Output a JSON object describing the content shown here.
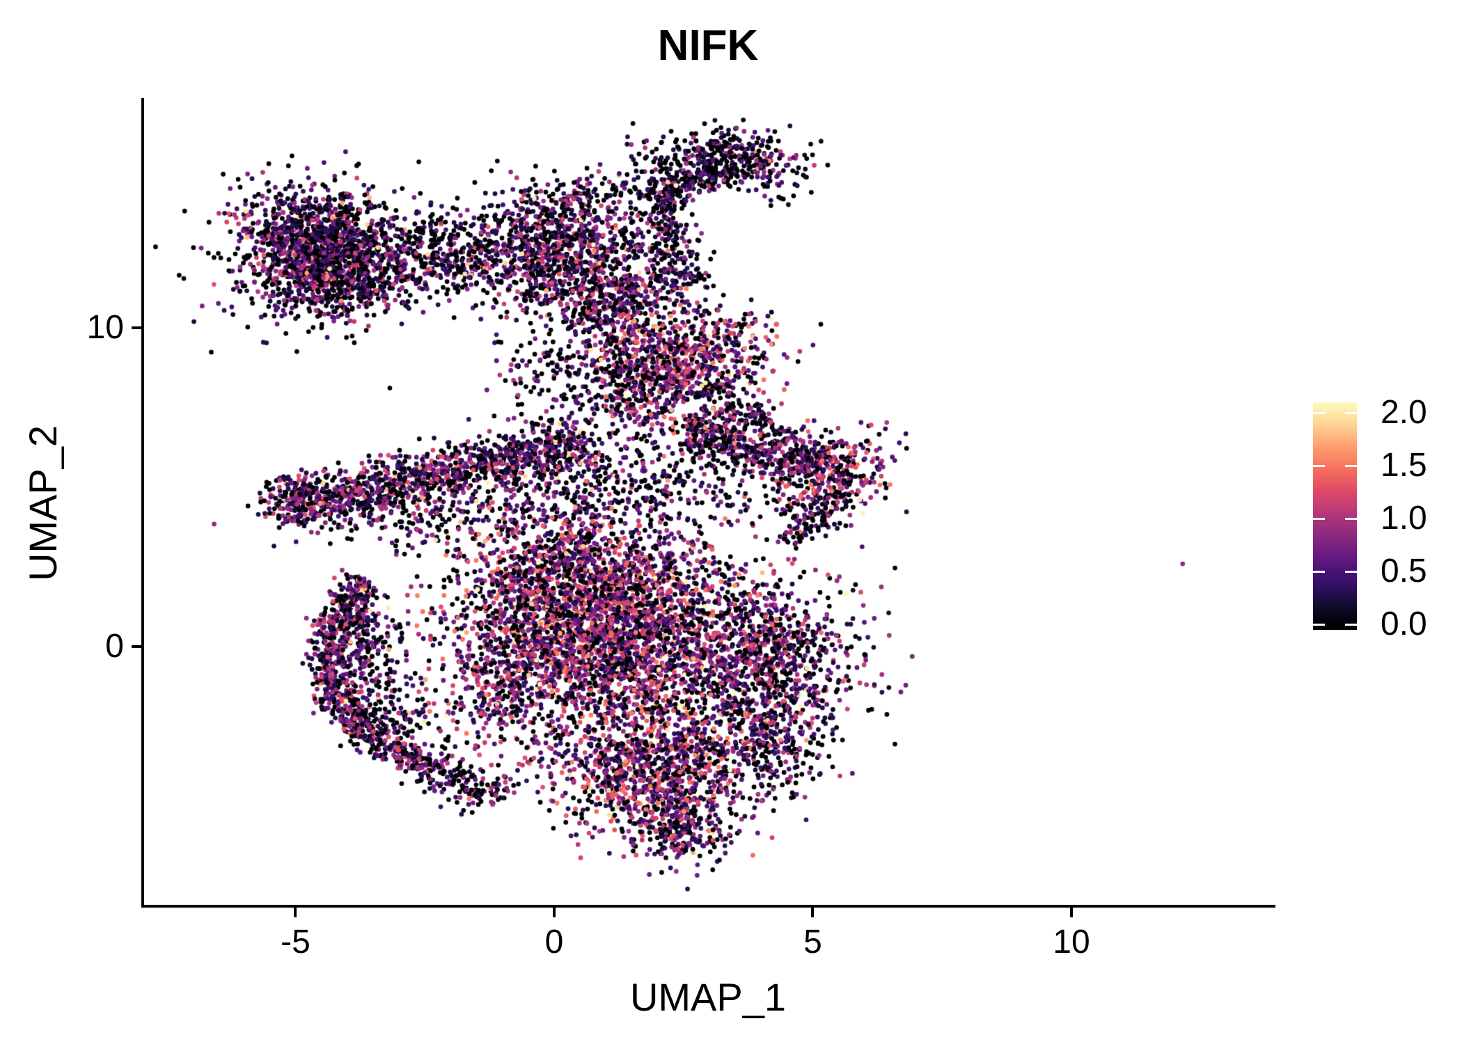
{
  "chart_data": {
    "type": "scatter",
    "title": "NIFK",
    "xlabel": "UMAP_1",
    "ylabel": "UMAP_2",
    "xlim": [
      -7.98,
      13.93
    ],
    "ylim": [
      -8.12,
      17.16
    ],
    "grid": false,
    "background": "#ffffff",
    "point_radius_px": 3.4,
    "seed": 1337,
    "x_ticks": [
      {
        "v": -5,
        "label": "-5"
      },
      {
        "v": 0,
        "label": "0"
      },
      {
        "v": 5,
        "label": "5"
      },
      {
        "v": 10,
        "label": "10"
      }
    ],
    "y_ticks": [
      {
        "v": 0,
        "label": "0"
      },
      {
        "v": 10,
        "label": "10"
      }
    ],
    "legend": {
      "position": "right",
      "range": [
        0,
        2.1
      ],
      "ticks": [
        {
          "v": 2.0,
          "label": "2.0"
        },
        {
          "v": 1.5,
          "label": "1.5"
        },
        {
          "v": 1.0,
          "label": "1.0"
        },
        {
          "v": 0.5,
          "label": "0.5"
        },
        {
          "v": 0.0,
          "label": "0.0"
        }
      ]
    },
    "colormap": {
      "name": "magma",
      "stops": [
        "#000004",
        "#150e37",
        "#3b0f70",
        "#641980",
        "#8c2981",
        "#b73779",
        "#de4968",
        "#f7705c",
        "#fe9f6d",
        "#fed395",
        "#fcfdbf"
      ]
    },
    "expression_profiles": {
      "low": {
        "p0": 0.45,
        "base": 0.12,
        "span": 1.0,
        "pw": 1.6,
        "hp": 0.02
      },
      "mid": {
        "p0": 0.34,
        "base": 0.18,
        "span": 1.15,
        "pw": 1.45,
        "hp": 0.04
      },
      "hi": {
        "p0": 0.3,
        "base": 0.25,
        "span": 1.3,
        "pw": 1.25,
        "hp": 0.05
      }
    },
    "clusters": [
      {
        "name": "topleft-core",
        "shape": "gauss",
        "n": 950,
        "cx": -4.6,
        "cy": 12.6,
        "sx": 0.7,
        "sy": 0.85,
        "expr": "mid"
      },
      {
        "name": "topleft-lower",
        "shape": "gauss",
        "n": 450,
        "cx": -4.1,
        "cy": 11.6,
        "sx": 0.75,
        "sy": 0.6,
        "expr": "mid"
      },
      {
        "name": "topleft-fringe",
        "shape": "gauss",
        "n": 280,
        "cx": -4.5,
        "cy": 12.2,
        "sx": 1.15,
        "sy": 1.25,
        "expr": "low"
      },
      {
        "name": "bridge-left",
        "shape": "gauss",
        "n": 300,
        "cx": -2.1,
        "cy": 12.1,
        "sx": 0.75,
        "sy": 0.6,
        "expr": "low"
      },
      {
        "name": "bridge-left-2",
        "shape": "gauss",
        "n": 120,
        "cx": -2.4,
        "cy": 12.7,
        "sx": 0.9,
        "sy": 0.7,
        "expr": "low"
      },
      {
        "name": "topmid-core",
        "shape": "gauss",
        "n": 850,
        "cx": 0.15,
        "cy": 12.4,
        "sx": 0.8,
        "sy": 0.95,
        "expr": "mid"
      },
      {
        "name": "topmid-ext",
        "shape": "gauss",
        "n": 250,
        "cx": 1.0,
        "cy": 10.9,
        "sx": 0.5,
        "sy": 0.6,
        "expr": "mid"
      },
      {
        "name": "topmid-fringe",
        "shape": "gauss",
        "n": 120,
        "cx": 0.3,
        "cy": 13.9,
        "sx": 0.8,
        "sy": 0.45,
        "expr": "low"
      },
      {
        "name": "topright-blob",
        "shape": "gauss",
        "n": 380,
        "cx": 3.4,
        "cy": 15.2,
        "sx": 0.75,
        "sy": 0.5,
        "rot": -18,
        "expr": "low"
      },
      {
        "name": "topright-clump",
        "shape": "gauss",
        "n": 130,
        "cx": 2.1,
        "cy": 14.4,
        "sx": 0.38,
        "sy": 0.42,
        "expr": "low"
      },
      {
        "name": "topright-strand",
        "shape": "band",
        "n": 90,
        "x1": 2.2,
        "y1": 14.2,
        "x2": 3.2,
        "y2": 14.9,
        "sw": 0.18,
        "expr": "low"
      },
      {
        "name": "strand-down",
        "shape": "band",
        "n": 150,
        "x1": 2.15,
        "y1": 13.2,
        "x2": 2.5,
        "y2": 11.2,
        "sw": 0.3,
        "expr": "low"
      },
      {
        "name": "strand-vert",
        "shape": "band",
        "n": 60,
        "x1": 2.1,
        "y1": 13.0,
        "x2": 2.2,
        "y2": 14.2,
        "sw": 0.15,
        "expr": "low"
      },
      {
        "name": "mid-blob",
        "shape": "gauss",
        "n": 800,
        "cx": 2.4,
        "cy": 9.0,
        "sx": 0.85,
        "sy": 1.0,
        "expr": "hi"
      },
      {
        "name": "mid-blob-ll",
        "shape": "gauss",
        "n": 200,
        "cx": 1.7,
        "cy": 8.0,
        "sx": 0.6,
        "sy": 0.8,
        "expr": "mid"
      },
      {
        "name": "mid-strand",
        "shape": "band",
        "n": 90,
        "x1": 2.9,
        "y1": 8.3,
        "x2": 4.1,
        "y2": 7.0,
        "sw": 0.22,
        "expr": "low"
      },
      {
        "name": "left-band",
        "shape": "band",
        "n": 950,
        "x1": -5.0,
        "y1": 4.5,
        "x2": 0.6,
        "y2": 6.4,
        "sw": 0.42,
        "expr": "mid"
      },
      {
        "name": "left-band-tip",
        "shape": "gauss",
        "n": 150,
        "cx": -5.0,
        "cy": 4.6,
        "sx": 0.35,
        "sy": 0.4,
        "expr": "mid"
      },
      {
        "name": "left-band-under",
        "shape": "gauss",
        "n": 200,
        "cx": -2.6,
        "cy": 4.2,
        "sx": 1.3,
        "sy": 0.5,
        "expr": "low"
      },
      {
        "name": "right-arm",
        "shape": "band",
        "n": 450,
        "x1": 2.6,
        "y1": 6.7,
        "x2": 5.2,
        "y2": 5.8,
        "sw": 0.4,
        "expr": "mid"
      },
      {
        "name": "right-arm-tip",
        "shape": "gauss",
        "n": 320,
        "cx": 5.35,
        "cy": 5.5,
        "sx": 0.55,
        "sy": 0.6,
        "expr": "hi"
      },
      {
        "name": "right-arm-tail",
        "shape": "band",
        "n": 130,
        "x1": 5.6,
        "y1": 4.8,
        "x2": 4.4,
        "y2": 3.3,
        "sw": 0.25,
        "expr": "low"
      },
      {
        "name": "core",
        "shape": "gauss",
        "n": 2700,
        "cx": 1.3,
        "cy": 0.1,
        "sx": 1.55,
        "sy": 1.5,
        "expr": "hi"
      },
      {
        "name": "core-upper",
        "shape": "gauss",
        "n": 950,
        "cx": 0.4,
        "cy": 2.3,
        "sx": 1.25,
        "sy": 0.95,
        "expr": "hi"
      },
      {
        "name": "core-right",
        "shape": "gauss",
        "n": 750,
        "cx": 4.2,
        "cy": -0.6,
        "sx": 0.85,
        "sy": 1.35,
        "expr": "mid"
      },
      {
        "name": "core-bottom",
        "shape": "gauss",
        "n": 950,
        "cx": 1.9,
        "cy": -4.0,
        "sx": 1.05,
        "sy": 0.95,
        "expr": "hi"
      },
      {
        "name": "core-tip",
        "shape": "gauss",
        "n": 220,
        "cx": 2.4,
        "cy": -5.7,
        "sx": 0.55,
        "sy": 0.6,
        "expr": "mid"
      },
      {
        "name": "core-rb",
        "shape": "gauss",
        "n": 260,
        "cx": 3.9,
        "cy": -3.1,
        "sx": 0.85,
        "sy": 0.85,
        "expr": "low"
      },
      {
        "name": "core-left",
        "shape": "gauss",
        "n": 350,
        "cx": -0.9,
        "cy": -1.2,
        "sx": 0.9,
        "sy": 1.3,
        "expr": "mid"
      },
      {
        "name": "crescent",
        "shape": "arc",
        "n": 750,
        "cx": -1.5,
        "cy": -0.3,
        "a": 2.85,
        "b": 3.55,
        "t1": 138,
        "t2": 252,
        "sw": 0.22,
        "expr": "mid"
      },
      {
        "name": "crescent-inner",
        "shape": "arc",
        "n": 260,
        "cx": -1.5,
        "cy": -0.3,
        "a": 2.2,
        "b": 2.7,
        "t1": 150,
        "t2": 240,
        "sw": 0.45,
        "expr": "low"
      },
      {
        "name": "crescent-tail",
        "shape": "band",
        "n": 140,
        "x1": -2.4,
        "y1": -3.6,
        "x2": -1.1,
        "y2": -4.9,
        "sw": 0.3,
        "expr": "low"
      },
      {
        "name": "bridge-mid",
        "shape": "gauss",
        "n": 220,
        "cx": 0.3,
        "cy": 8.6,
        "sx": 0.8,
        "sy": 1.1,
        "expr": "low"
      },
      {
        "name": "scatter-mid",
        "shape": "gauss",
        "n": 480,
        "cx": 1.2,
        "cy": 5.0,
        "sx": 1.6,
        "sy": 0.75,
        "expr": "low"
      },
      {
        "name": "scatter-upper",
        "shape": "gauss",
        "n": 130,
        "cx": 1.6,
        "cy": 11.0,
        "sx": 0.65,
        "sy": 1.1,
        "expr": "low"
      },
      {
        "name": "outlier",
        "shape": "points",
        "pts": [
          [
            12.15,
            2.6,
            0.85
          ]
        ]
      }
    ]
  }
}
